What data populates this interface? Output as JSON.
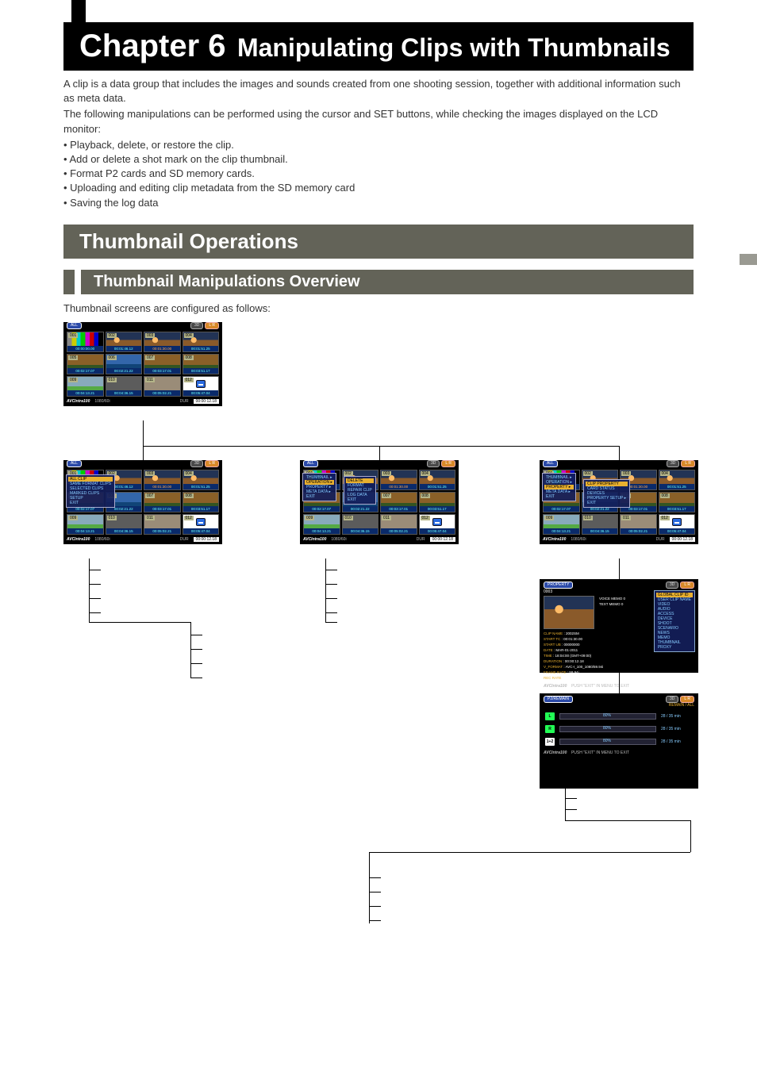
{
  "chapter": {
    "num_label": "Chapter 6",
    "title": "Manipulating Clips with Thumbnails"
  },
  "intro": {
    "p1": "A clip is a data group that includes the images and sounds created from one shooting session, together with additional information such as meta data.",
    "p2": "The following manipulations can be performed using the cursor and SET buttons, while checking the images displayed on the LCD monitor:"
  },
  "bullets": [
    "Playback, delete, or restore the clip.",
    "Add or delete a shot mark on the clip thumbnail.",
    "Format P2 cards and SD memory cards.",
    "Uploading and editing clip metadata from the SD memory card",
    "Saving the log data"
  ],
  "section": {
    "title": "Thumbnail Operations"
  },
  "subsection": {
    "title": "Thumbnail Manipulations Overview",
    "caption": "Thumbnail screens are configured as follows:"
  },
  "panel_common": {
    "all_pill": "ALL",
    "three_d": "3D",
    "lr": "L R",
    "codec": "AVCIntra100",
    "fmt": "1080/60i",
    "dur_lbl": "DUR",
    "dur_val": "00:00:12.18"
  },
  "thumbs": [
    {
      "n": "001",
      "tc": "00:00:00.00",
      "fill": "fill-bars"
    },
    {
      "n": "002",
      "tc": "00:01:46.12",
      "fill": "fill-sun"
    },
    {
      "n": "003",
      "tc": "00:01:30.00",
      "fill": "fill-sun",
      "orange": true
    },
    {
      "n": "004",
      "tc": "00:01:51.25",
      "fill": "fill-sun"
    },
    {
      "n": "005",
      "tc": "00:02:17.07",
      "fill": "fill-boat"
    },
    {
      "n": "006",
      "tc": "00:02:21.22",
      "fill": "fill-water"
    },
    {
      "n": "007",
      "tc": "00:03:17.01",
      "fill": "fill-boat"
    },
    {
      "n": "008",
      "tc": "00:03:51.17",
      "fill": "fill-boat"
    },
    {
      "n": "009",
      "tc": "00:04:13.21",
      "fill": "fill-sky"
    },
    {
      "n": "010",
      "tc": "00:04:36.15",
      "fill": "fill-gray"
    },
    {
      "n": "011",
      "tc": "00:05:02.21",
      "fill": "fill-beige"
    },
    {
      "n": "012",
      "tc": "00:05:47.04",
      "fill": "fill-icon",
      "icon": true
    }
  ],
  "menu_left": {
    "hi": "ALL CLIP",
    "items": [
      "SAME FORMAT CLIPS",
      "SELECTED CLIPS",
      "MARKED CLIPS",
      "SETUP",
      "EXIT"
    ]
  },
  "menu_mid_outer": {
    "items": [
      "THUMBNAIL ▸",
      "OPERATION ▸",
      "PROPERTY ▸",
      "META DATA ▸",
      "EXIT"
    ]
  },
  "menu_mid_inner": {
    "hi": "DELETE",
    "items": [
      "FORMAT",
      "REPAIR CLIP",
      "LOG DATA",
      "EXIT"
    ]
  },
  "menu_right_outer": {
    "items": [
      "THUMBNAIL ▸",
      "OPERATION ▸",
      "PROPERTY ▸",
      "META DATA ▸",
      "EXIT"
    ]
  },
  "menu_right_inner": {
    "hi": "CLIP PROPERTY",
    "items": [
      "CARD STATUS",
      "DEVICES",
      "PROPERTY SETUP ▸",
      "EXIT"
    ]
  },
  "property": {
    "title": "PROPERTY",
    "clip_no": "0003",
    "voice": "VOICE MEMO   0",
    "text": "TEXT MEMO   0",
    "lines": [
      [
        "CLIP NAME",
        ": 2002SM"
      ],
      [
        "START TC",
        ": 00:01:30.00"
      ],
      [
        "START UB",
        ": 00000000"
      ],
      [
        "DATE",
        ": MAR-01-2011"
      ],
      [
        "TIME",
        ": 18:04:00 (GMT+09:00)"
      ],
      [
        "DURATION",
        ": 00:00:12.18"
      ],
      [
        "V_FORMAT",
        ": AVC-I_100_1080/59.94i"
      ],
      [
        "FRAME RATE",
        ": 59.94i"
      ],
      [
        "REC RATE",
        ": -"
      ]
    ],
    "side_menu": {
      "hi": "GLOBAL CLIP ID",
      "items": [
        "USER CLIP NAME",
        "VIDEO",
        "AUDIO",
        "ACCESS",
        "DEVICE",
        "SHOOT",
        "SCENARIO",
        "NEWS",
        "MEMO",
        "THUMBNAIL",
        "PROXY"
      ]
    },
    "footer": "PUSH \"EXIT\" IN MENU TO EXIT"
  },
  "remain": {
    "title": "P2/REMAIN",
    "header_note": "REMAIN / ALL",
    "rows": [
      {
        "slot": "L",
        "slot_cls": "",
        "pct": "80%",
        "val": "28 / 35",
        "unit": "min"
      },
      {
        "slot": "R",
        "slot_cls": "",
        "pct": "80%",
        "val": "28 / 35",
        "unit": "min"
      },
      {
        "slot": "1+2",
        "slot_cls": "slot-white",
        "pct": "80%",
        "val": "28 / 35",
        "unit": "min"
      }
    ],
    "footer": "PUSH \"EXIT\" IN MENU TO EXIT"
  },
  "colors": {
    "banner": "#636358",
    "chapter_bg": "#000000",
    "tc_blue": "#0a2a6a",
    "tc_text": "#66ffff",
    "accent_orange": "#e8b030",
    "menu_bg": "rgba(20,30,90,0.92)",
    "bar_fill": "#224f9a"
  }
}
